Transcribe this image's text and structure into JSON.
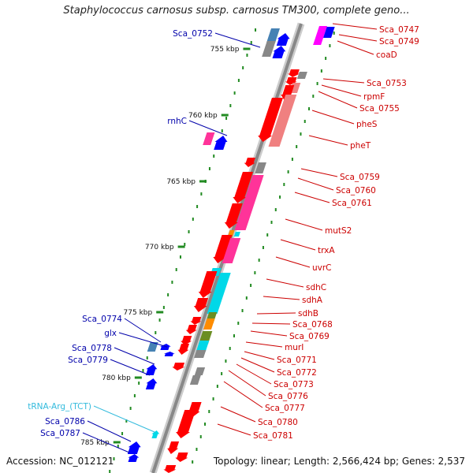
{
  "title": "Staphylococcus carnosus subsp. carnosus TM300, complete geno...",
  "footer": {
    "accession": "Accession: NC_012121",
    "summary": "Topology: linear; Length: 2,566,424 bp; Genes: 2,537"
  },
  "colors": {
    "backbone": "#888888",
    "ruler": "#228b22",
    "plus_strand_label": "#cc0000",
    "minus_strand_label": "#0000aa",
    "rna_label": "#33bbdd",
    "gene_plus": "#ff0000",
    "gene_minus": "#0000ff",
    "cog_pink": "#ff3399",
    "cog_salmon": "#f08080",
    "cog_cyan": "#00d8e8",
    "cog_grey": "#888888",
    "cog_olive": "#6b8e23",
    "cog_orange": "#ff8c00",
    "cog_steel": "#4682b4",
    "cog_magenta": "#ff00ff"
  },
  "ruler_ticks": [
    "755 kbp",
    "760 kbp",
    "765 kbp",
    "770 kbp",
    "775 kbp",
    "780 kbp",
    "785 kbp"
  ],
  "genes_right": [
    "Sca_0747",
    "Sca_0749",
    "coaD",
    "Sca_0753",
    "rpmF",
    "Sca_0755",
    "pheS",
    "pheT",
    "Sca_0759",
    "Sca_0760",
    "Sca_0761",
    "mutS2",
    "trxA",
    "uvrC",
    "sdhC",
    "sdhA",
    "sdhB",
    "Sca_0768",
    "Sca_0769",
    "murI",
    "Sca_0771",
    "Sca_0772",
    "Sca_0773",
    "Sca_0776",
    "Sca_0777",
    "Sca_0780",
    "Sca_0781"
  ],
  "genes_left": [
    "Sca_0752",
    "rnhC",
    "Sca_0774",
    "glx",
    "Sca_0778",
    "Sca_0779",
    "Sca_0786",
    "Sca_0787"
  ],
  "rna_left": [
    "tRNA-Arg_(TCT)"
  ]
}
